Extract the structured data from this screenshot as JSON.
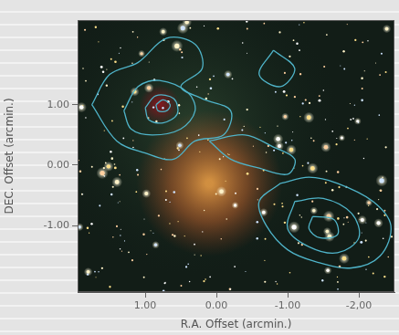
{
  "chart_data": {
    "type": "scatter",
    "x_label": "R.A. Offset (arcmin.)",
    "y_label": "DEC. Offset (arcmin.)",
    "xlim": [
      1.95,
      -2.5
    ],
    "ylim": [
      -2.1,
      2.4
    ],
    "xticks": [
      {
        "value": 1,
        "label": "1.00"
      },
      {
        "value": 0,
        "label": "0.00"
      },
      {
        "value": -1,
        "label": "-1.00"
      },
      {
        "value": -2,
        "label": "-2,00"
      }
    ],
    "yticks": [
      {
        "value": -1,
        "label": "-1.00"
      },
      {
        "value": 0,
        "label": "0.00"
      },
      {
        "value": 1,
        "label": "1.00"
      }
    ],
    "grid": false,
    "color": "#4fb3c8",
    "marker": "none",
    "line_style": "solid",
    "series": [
      {
        "x": [
          1.75,
          1.5,
          1.1,
          0.7,
          0.3,
          0.2,
          0.5,
          0.2,
          -0.2,
          -0.1,
          0.3,
          0.6,
          1.0,
          1.4,
          1.75
        ],
        "y": [
          1.0,
          1.5,
          1.7,
          2.1,
          2.0,
          1.6,
          1.3,
          1.1,
          0.9,
          0.5,
          0.4,
          0.1,
          0.2,
          0.4,
          1.0
        ]
      },
      {
        "x": [
          1.3,
          1.1,
          0.8,
          0.4,
          0.3,
          0.5,
          0.9,
          1.2,
          1.3
        ],
        "y": [
          0.9,
          1.3,
          1.4,
          1.2,
          0.9,
          0.6,
          0.5,
          0.6,
          0.9
        ]
      },
      {
        "x": [
          1.0,
          0.85,
          0.6,
          0.55,
          0.75,
          0.95,
          1.0
        ],
        "y": [
          0.95,
          1.15,
          1.1,
          0.85,
          0.7,
          0.75,
          0.95
        ]
      },
      {
        "x": [
          0.85,
          0.75,
          0.65,
          0.7,
          0.82,
          0.85
        ],
        "y": [
          1.0,
          1.08,
          1.0,
          0.9,
          0.9,
          1.0
        ]
      },
      {
        "x": [
          0.1,
          -0.4,
          -0.8,
          -1.1,
          -1.0,
          -0.6,
          -0.2,
          0.1
        ],
        "y": [
          0.4,
          0.5,
          0.3,
          0.1,
          -0.15,
          -0.05,
          0.1,
          0.4
        ]
      },
      {
        "x": [
          -0.9,
          -1.3,
          -1.7,
          -2.2,
          -2.45,
          -2.3,
          -1.9,
          -1.4,
          -1.0,
          -0.7,
          -0.6,
          -0.9
        ],
        "y": [
          -0.3,
          -0.2,
          -0.3,
          -0.6,
          -1.0,
          -1.5,
          -1.7,
          -1.6,
          -1.4,
          -1.0,
          -0.6,
          -0.3
        ]
      },
      {
        "x": [
          -1.1,
          -1.5,
          -1.9,
          -2.0,
          -1.7,
          -1.3,
          -1.0,
          -1.1
        ],
        "y": [
          -0.6,
          -0.55,
          -0.8,
          -1.2,
          -1.45,
          -1.35,
          -1.05,
          -0.6
        ]
      },
      {
        "x": [
          -1.35,
          -1.65,
          -1.7,
          -1.45,
          -1.3,
          -1.35
        ],
        "y": [
          -0.85,
          -0.9,
          -1.15,
          -1.2,
          -1.05,
          -0.85
        ]
      },
      {
        "x": [
          -0.8,
          -0.6,
          -0.9,
          -1.1,
          -0.8
        ],
        "y": [
          1.9,
          1.5,
          1.3,
          1.6,
          1.9
        ]
      }
    ]
  }
}
